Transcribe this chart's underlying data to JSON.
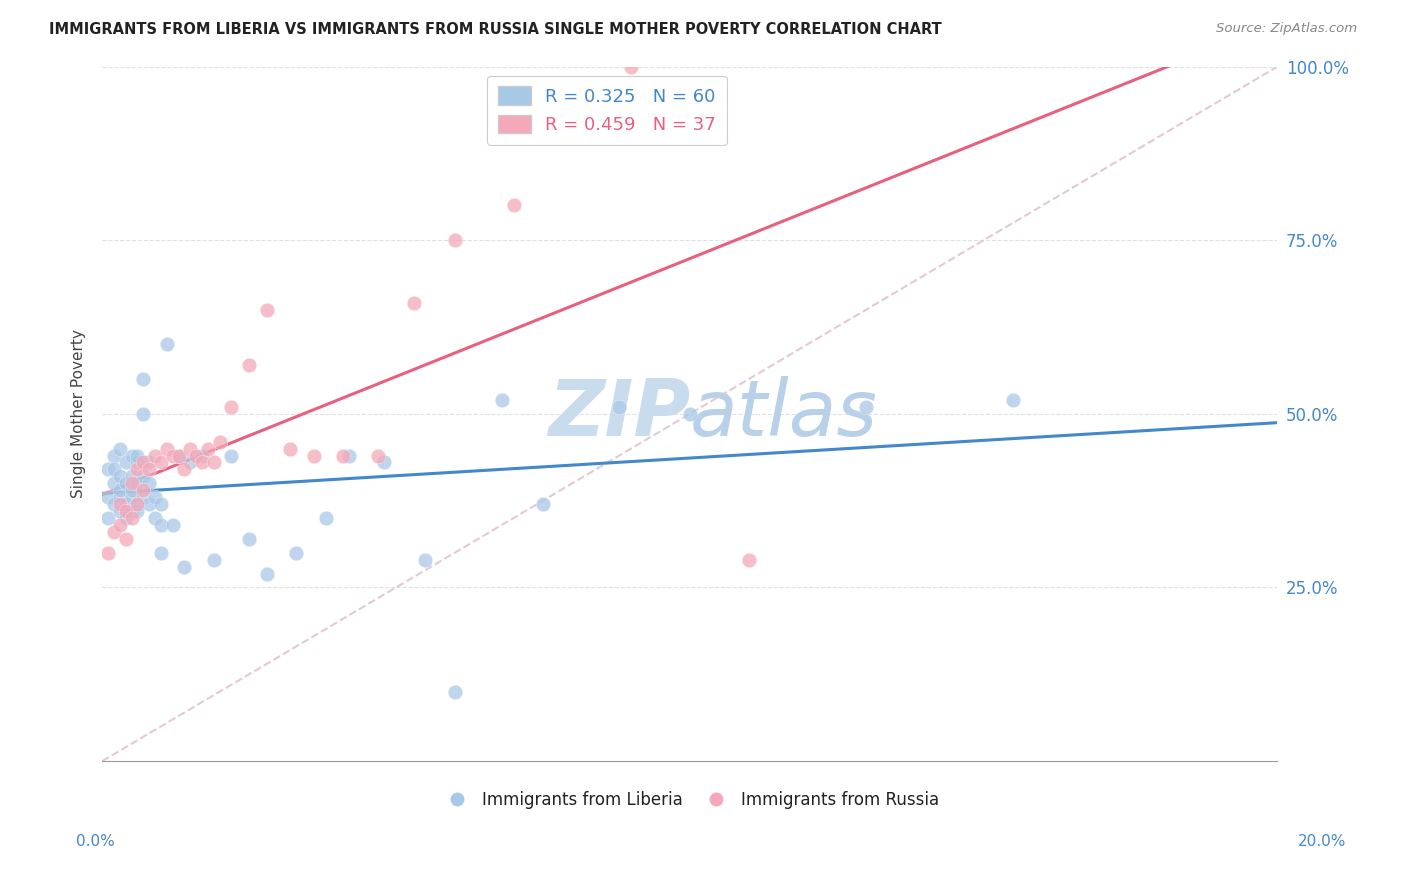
{
  "title": "IMMIGRANTS FROM LIBERIA VS IMMIGRANTS FROM RUSSIA SINGLE MOTHER POVERTY CORRELATION CHART",
  "source": "Source: ZipAtlas.com",
  "ylabel": "Single Mother Poverty",
  "legend_liberia": "Immigrants from Liberia",
  "legend_russia": "Immigrants from Russia",
  "R_liberia": 0.325,
  "N_liberia": 60,
  "R_russia": 0.459,
  "N_russia": 37,
  "color_liberia": "#a8c8e8",
  "color_russia": "#f4a8b8",
  "color_liberia_line": "#4488cc",
  "color_russia_line": "#e86080",
  "watermark_color": "#d0e4f0",
  "background": "#ffffff",
  "grid_color": "#e0e0e0",
  "xlim": [
    0.0,
    0.2
  ],
  "ylim": [
    0.0,
    1.0
  ],
  "liberia_x": [
    0.001,
    0.001,
    0.001,
    0.002,
    0.002,
    0.002,
    0.002,
    0.003,
    0.003,
    0.003,
    0.003,
    0.003,
    0.004,
    0.004,
    0.004,
    0.004,
    0.005,
    0.005,
    0.005,
    0.005,
    0.005,
    0.006,
    0.006,
    0.006,
    0.006,
    0.006,
    0.007,
    0.007,
    0.007,
    0.007,
    0.008,
    0.008,
    0.008,
    0.009,
    0.009,
    0.01,
    0.01,
    0.01,
    0.011,
    0.012,
    0.013,
    0.014,
    0.015,
    0.017,
    0.019,
    0.022,
    0.025,
    0.028,
    0.033,
    0.038,
    0.042,
    0.048,
    0.055,
    0.06,
    0.068,
    0.075,
    0.088,
    0.1,
    0.13,
    0.155
  ],
  "liberia_y": [
    0.42,
    0.38,
    0.35,
    0.44,
    0.4,
    0.37,
    0.42,
    0.38,
    0.41,
    0.45,
    0.36,
    0.39,
    0.43,
    0.37,
    0.4,
    0.35,
    0.38,
    0.41,
    0.44,
    0.36,
    0.39,
    0.43,
    0.37,
    0.4,
    0.44,
    0.36,
    0.5,
    0.55,
    0.38,
    0.41,
    0.37,
    0.4,
    0.43,
    0.35,
    0.38,
    0.3,
    0.34,
    0.37,
    0.6,
    0.34,
    0.44,
    0.28,
    0.43,
    0.44,
    0.29,
    0.44,
    0.32,
    0.27,
    0.3,
    0.35,
    0.44,
    0.43,
    0.29,
    0.1,
    0.52,
    0.37,
    0.51,
    0.5,
    0.51,
    0.52
  ],
  "russia_x": [
    0.001,
    0.002,
    0.003,
    0.003,
    0.004,
    0.004,
    0.005,
    0.005,
    0.006,
    0.006,
    0.007,
    0.007,
    0.008,
    0.009,
    0.01,
    0.011,
    0.012,
    0.013,
    0.014,
    0.015,
    0.016,
    0.017,
    0.018,
    0.019,
    0.02,
    0.022,
    0.025,
    0.028,
    0.032,
    0.036,
    0.041,
    0.047,
    0.053,
    0.06,
    0.07,
    0.09,
    0.11
  ],
  "russia_y": [
    0.3,
    0.33,
    0.34,
    0.37,
    0.32,
    0.36,
    0.4,
    0.35,
    0.42,
    0.37,
    0.43,
    0.39,
    0.42,
    0.44,
    0.43,
    0.45,
    0.44,
    0.44,
    0.42,
    0.45,
    0.44,
    0.43,
    0.45,
    0.43,
    0.46,
    0.51,
    0.57,
    0.65,
    0.45,
    0.44,
    0.44,
    0.44,
    0.66,
    0.75,
    0.8,
    1.0,
    0.29
  ]
}
